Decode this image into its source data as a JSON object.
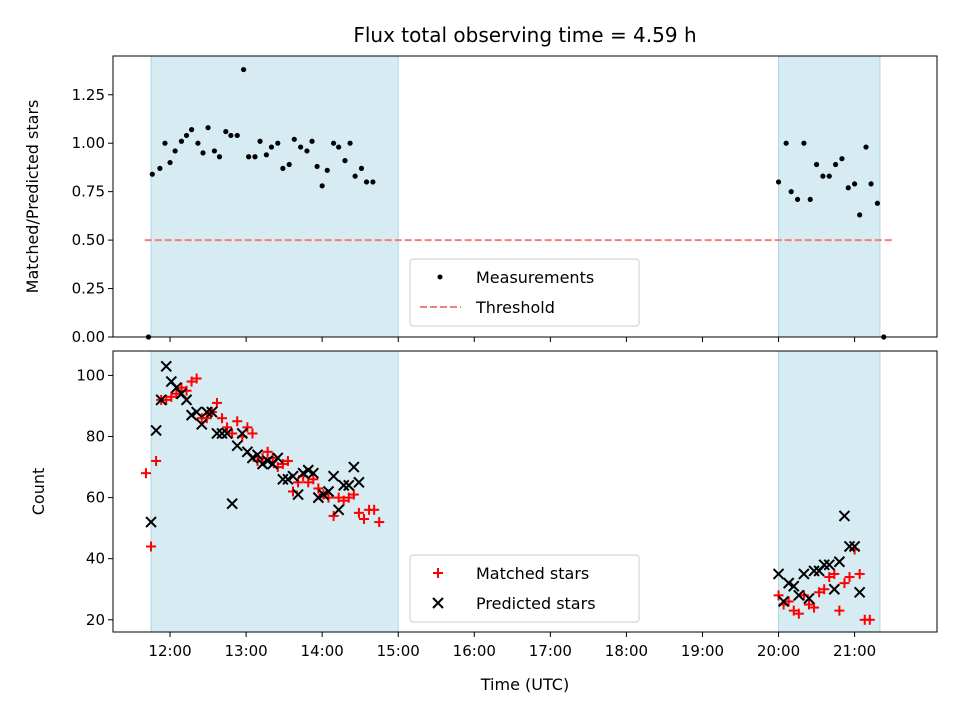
{
  "chart_data": [
    {
      "type": "scatter",
      "title": "Flux total observing time = 4.59 h",
      "ylabel": "Matched/Predicted stars",
      "xlabel": "",
      "xlim": [
        "11:15",
        "22:05"
      ],
      "ylim": [
        0,
        1.45
      ],
      "yticks": [
        0.0,
        0.25,
        0.5,
        0.75,
        1.0,
        1.25
      ],
      "ytick_labels": [
        "0.00",
        "0.25",
        "0.50",
        "0.75",
        "1.00",
        "1.25"
      ],
      "observing_windows": [
        [
          "11:45",
          "15:00"
        ],
        [
          "20:00",
          "21:20"
        ]
      ],
      "threshold": {
        "name": "Threshold",
        "value": 0.5,
        "x_range": [
          "11:40",
          "21:30"
        ],
        "color": "#f08080",
        "style": "dashed"
      },
      "legend": {
        "location": "lower center",
        "entries": [
          "Measurements",
          "Threshold"
        ]
      },
      "series": [
        {
          "name": "Measurements",
          "marker": "dot",
          "color": "#000000",
          "points": [
            [
              "11:43",
              0.0
            ],
            [
              "11:46",
              0.84
            ],
            [
              "11:52",
              0.87
            ],
            [
              "11:56",
              1.0
            ],
            [
              "12:00",
              0.9
            ],
            [
              "12:04",
              0.96
            ],
            [
              "12:09",
              1.01
            ],
            [
              "12:13",
              1.04
            ],
            [
              "12:17",
              1.07
            ],
            [
              "12:22",
              1.0
            ],
            [
              "12:26",
              0.95
            ],
            [
              "12:30",
              1.08
            ],
            [
              "12:35",
              0.96
            ],
            [
              "12:39",
              0.93
            ],
            [
              "12:44",
              1.06
            ],
            [
              "12:48",
              1.04
            ],
            [
              "12:53",
              1.04
            ],
            [
              "12:58",
              1.38
            ],
            [
              "13:02",
              0.93
            ],
            [
              "13:07",
              0.93
            ],
            [
              "13:11",
              1.01
            ],
            [
              "13:16",
              0.94
            ],
            [
              "13:20",
              0.98
            ],
            [
              "13:25",
              1.0
            ],
            [
              "13:29",
              0.87
            ],
            [
              "13:34",
              0.89
            ],
            [
              "13:38",
              1.02
            ],
            [
              "13:43",
              0.98
            ],
            [
              "13:48",
              0.96
            ],
            [
              "13:52",
              1.01
            ],
            [
              "13:56",
              0.88
            ],
            [
              "14:00",
              0.78
            ],
            [
              "14:04",
              0.86
            ],
            [
              "14:09",
              1.0
            ],
            [
              "14:13",
              0.98
            ],
            [
              "14:18",
              0.91
            ],
            [
              "14:22",
              1.0
            ],
            [
              "14:26",
              0.83
            ],
            [
              "14:31",
              0.87
            ],
            [
              "14:35",
              0.8
            ],
            [
              "14:40",
              0.8
            ],
            [
              "20:00",
              0.8
            ],
            [
              "20:06",
              1.0
            ],
            [
              "20:10",
              0.75
            ],
            [
              "20:15",
              0.71
            ],
            [
              "20:20",
              1.0
            ],
            [
              "20:25",
              0.71
            ],
            [
              "20:30",
              0.89
            ],
            [
              "20:35",
              0.83
            ],
            [
              "20:40",
              0.83
            ],
            [
              "20:45",
              0.89
            ],
            [
              "20:50",
              0.92
            ],
            [
              "20:55",
              0.77
            ],
            [
              "21:00",
              0.79
            ],
            [
              "21:04",
              0.63
            ],
            [
              "21:09",
              0.98
            ],
            [
              "21:13",
              0.79
            ],
            [
              "21:18",
              0.69
            ],
            [
              "21:23",
              0.0
            ]
          ]
        }
      ]
    },
    {
      "type": "scatter",
      "title": "",
      "ylabel": "Count",
      "xlabel": "Time (UTC)",
      "xlim": [
        "11:15",
        "22:05"
      ],
      "ylim": [
        16,
        108
      ],
      "yticks": [
        20,
        40,
        60,
        80,
        100
      ],
      "ytick_labels": [
        "20",
        "40",
        "60",
        "80",
        "100"
      ],
      "xticks": [
        "12:00",
        "13:00",
        "14:00",
        "15:00",
        "16:00",
        "17:00",
        "18:00",
        "19:00",
        "20:00",
        "21:00"
      ],
      "observing_windows": [
        [
          "11:45",
          "15:00"
        ],
        [
          "20:00",
          "21:20"
        ]
      ],
      "legend": {
        "location": "lower center",
        "entries": [
          "Matched stars",
          "Predicted stars"
        ]
      },
      "series": [
        {
          "name": "Matched stars",
          "marker": "plus",
          "color": "#ff0000",
          "points": [
            [
              "11:41",
              68
            ],
            [
              "11:45",
              44
            ],
            [
              "11:49",
              72
            ],
            [
              "11:53",
              92
            ],
            [
              "11:57",
              92
            ],
            [
              "12:01",
              93
            ],
            [
              "12:05",
              94
            ],
            [
              "12:09",
              96
            ],
            [
              "12:13",
              95
            ],
            [
              "12:17",
              98
            ],
            [
              "12:21",
              99
            ],
            [
              "12:25",
              86
            ],
            [
              "12:29",
              86
            ],
            [
              "12:33",
              88
            ],
            [
              "12:37",
              91
            ],
            [
              "12:41",
              86
            ],
            [
              "12:45",
              83
            ],
            [
              "12:49",
              81
            ],
            [
              "12:53",
              85
            ],
            [
              "12:57",
              80
            ],
            [
              "13:01",
              83
            ],
            [
              "13:05",
              81
            ],
            [
              "13:09",
              72
            ],
            [
              "13:13",
              73
            ],
            [
              "13:17",
              75
            ],
            [
              "13:21",
              73
            ],
            [
              "13:25",
              70
            ],
            [
              "13:29",
              71
            ],
            [
              "13:33",
              72
            ],
            [
              "13:37",
              62
            ],
            [
              "13:41",
              65
            ],
            [
              "13:45",
              67
            ],
            [
              "13:49",
              65
            ],
            [
              "13:53",
              66
            ],
            [
              "13:57",
              63
            ],
            [
              "14:01",
              61
            ],
            [
              "14:05",
              60
            ],
            [
              "14:09",
              54
            ],
            [
              "14:13",
              60
            ],
            [
              "14:17",
              59
            ],
            [
              "14:21",
              60
            ],
            [
              "14:25",
              61
            ],
            [
              "14:29",
              55
            ],
            [
              "14:33",
              53
            ],
            [
              "14:37",
              56
            ],
            [
              "14:41",
              56
            ],
            [
              "14:45",
              52
            ],
            [
              "20:00",
              28
            ],
            [
              "20:04",
              25
            ],
            [
              "20:08",
              26
            ],
            [
              "20:12",
              23
            ],
            [
              "20:16",
              22
            ],
            [
              "20:20",
              28
            ],
            [
              "20:24",
              25
            ],
            [
              "20:28",
              24
            ],
            [
              "20:32",
              29
            ],
            [
              "20:36",
              30
            ],
            [
              "20:40",
              34
            ],
            [
              "20:44",
              35
            ],
            [
              "20:48",
              23
            ],
            [
              "20:52",
              32
            ],
            [
              "20:56",
              34
            ],
            [
              "21:00",
              43
            ],
            [
              "21:04",
              35
            ],
            [
              "21:08",
              20
            ],
            [
              "21:12",
              20
            ]
          ]
        },
        {
          "name": "Predicted stars",
          "marker": "x",
          "color": "#000000",
          "points": [
            [
              "11:45",
              52
            ],
            [
              "11:49",
              82
            ],
            [
              "11:53",
              92
            ],
            [
              "11:57",
              103
            ],
            [
              "12:01",
              98
            ],
            [
              "12:05",
              96
            ],
            [
              "12:09",
              94
            ],
            [
              "12:13",
              92
            ],
            [
              "12:17",
              87
            ],
            [
              "12:21",
              88
            ],
            [
              "12:25",
              84
            ],
            [
              "12:29",
              88
            ],
            [
              "12:33",
              88
            ],
            [
              "12:37",
              81
            ],
            [
              "12:41",
              81
            ],
            [
              "12:45",
              81
            ],
            [
              "12:49",
              58
            ],
            [
              "12:53",
              77
            ],
            [
              "12:57",
              81
            ],
            [
              "13:01",
              75
            ],
            [
              "13:05",
              73
            ],
            [
              "13:09",
              74
            ],
            [
              "13:13",
              71
            ],
            [
              "13:17",
              72
            ],
            [
              "13:21",
              71
            ],
            [
              "13:25",
              73
            ],
            [
              "13:29",
              66
            ],
            [
              "13:33",
              66
            ],
            [
              "13:37",
              67
            ],
            [
              "13:41",
              61
            ],
            [
              "13:45",
              68
            ],
            [
              "13:49",
              69
            ],
            [
              "13:53",
              68
            ],
            [
              "13:57",
              60
            ],
            [
              "14:01",
              61
            ],
            [
              "14:05",
              62
            ],
            [
              "14:09",
              67
            ],
            [
              "14:13",
              56
            ],
            [
              "14:17",
              64
            ],
            [
              "14:21",
              64
            ],
            [
              "14:25",
              70
            ],
            [
              "14:29",
              65
            ],
            [
              "20:00",
              35
            ],
            [
              "20:04",
              26
            ],
            [
              "20:08",
              32
            ],
            [
              "20:12",
              31
            ],
            [
              "20:16",
              28
            ],
            [
              "20:20",
              35
            ],
            [
              "20:24",
              27
            ],
            [
              "20:28",
              36
            ],
            [
              "20:32",
              36
            ],
            [
              "20:36",
              38
            ],
            [
              "20:40",
              38
            ],
            [
              "20:44",
              30
            ],
            [
              "20:48",
              39
            ],
            [
              "20:52",
              54
            ],
            [
              "20:56",
              44
            ],
            [
              "21:00",
              44
            ],
            [
              "21:04",
              29
            ]
          ]
        }
      ]
    }
  ],
  "colors": {
    "window_fill": "#add8e6",
    "window_edge": "#add8e6",
    "threshold": "#f08080",
    "matched": "#ff0000",
    "predicted": "#000000",
    "measurement": "#000000"
  }
}
